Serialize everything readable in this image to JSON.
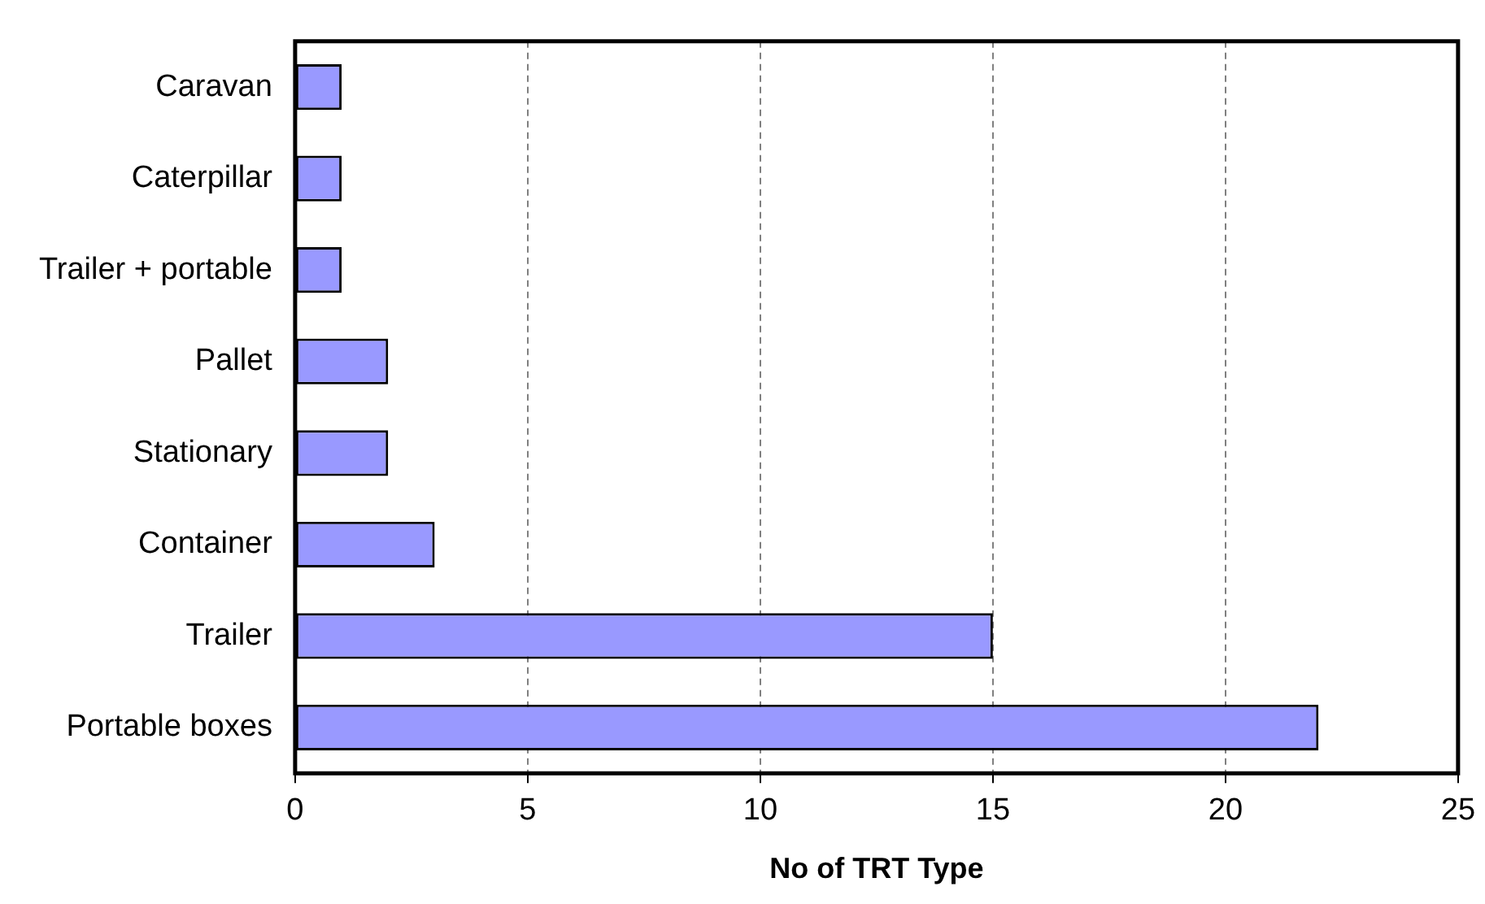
{
  "chart_data": {
    "type": "bar",
    "orientation": "horizontal",
    "xlabel": "No of TRT Type",
    "categories": [
      "Caravan",
      "Caterpillar",
      "Trailer + portable",
      "Pallet",
      "Stationary",
      "Container",
      "Trailer",
      "Portable boxes"
    ],
    "values": [
      1,
      1,
      1,
      2,
      2,
      3,
      15,
      22
    ],
    "color": "#9999ff",
    "xlim": [
      0,
      25
    ],
    "xticks": [
      0,
      5,
      10,
      15,
      20,
      25
    ],
    "grid": "x",
    "legend": false
  }
}
